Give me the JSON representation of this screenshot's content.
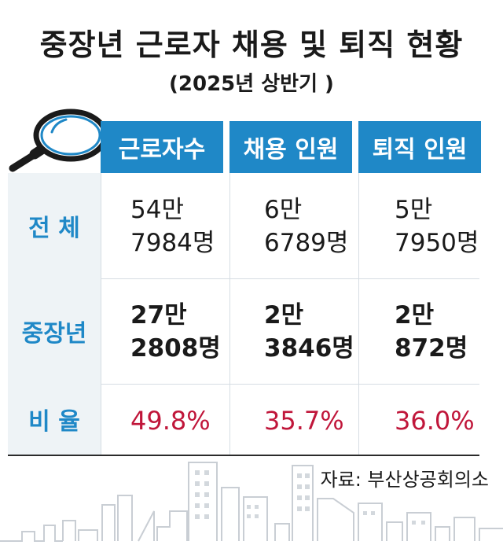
{
  "title": "중장년 근로자 채용 및 퇴직 현황",
  "subtitle": "(2025년 상반기 )",
  "source": "자료: 부산상공회의소",
  "colors": {
    "header": "#1f88c7",
    "label": "#1f88c7",
    "ratio": "#c0163a"
  },
  "chart_data": {
    "type": "table",
    "columns": [
      "근로자수",
      "채용 인원",
      "퇴직 인원"
    ],
    "rows": [
      {
        "label": "전 체",
        "cells": [
          [
            "54만",
            "7984명"
          ],
          [
            "6만",
            "6789명"
          ],
          [
            "5만",
            "7950명"
          ]
        ]
      },
      {
        "label": "중장년",
        "cells": [
          [
            "27만",
            "2808명"
          ],
          [
            "2만",
            "3846명"
          ],
          [
            "2만",
            "872명"
          ]
        ]
      },
      {
        "label": "비 율",
        "cells": [
          "49.8%",
          "35.7%",
          "36.0%"
        ]
      }
    ]
  }
}
